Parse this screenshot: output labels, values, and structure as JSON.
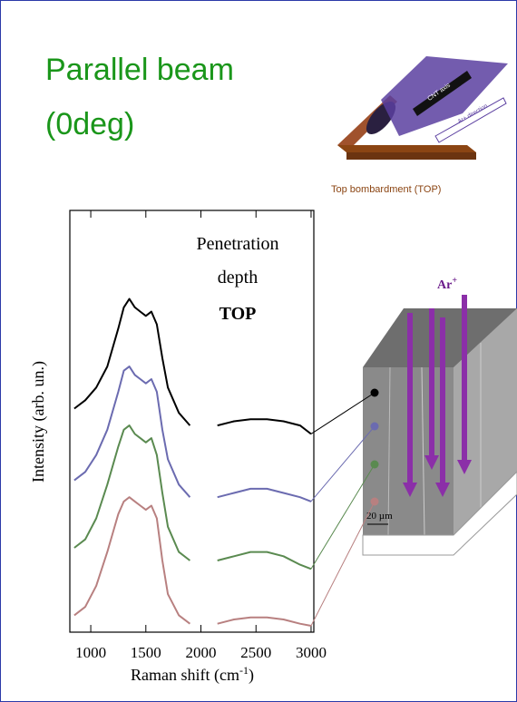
{
  "title": [
    "Parallel beam",
    "(0deg)"
  ],
  "illustration": {
    "cnt_label": "CNT axis",
    "ar_label": "Ar+ direction",
    "caption": "Top bombardment (TOP)"
  },
  "chart_data": {
    "type": "line",
    "annotation": [
      "Penetration",
      "depth",
      "TOP"
    ],
    "ylabel": "Intensity (arb. un.)",
    "xlabel": [
      "Raman shift (cm",
      "-1",
      ")"
    ],
    "x": [
      850,
      950,
      1050,
      1150,
      1250,
      1300,
      1350,
      1400,
      1450,
      1500,
      1550,
      1600,
      1650,
      1700,
      1800,
      1900,
      2000,
      2150,
      2300,
      2450,
      2600,
      2750,
      2900,
      3000
    ],
    "xlim": [
      810,
      3025
    ],
    "xticks": [
      1000,
      1500,
      2000,
      2500,
      3000
    ],
    "ylim": [
      0,
      100
    ],
    "series": [
      {
        "color": "#000000",
        "values": [
          53,
          55,
          58,
          63,
          72,
          77,
          79,
          77,
          76,
          75,
          76,
          73,
          65,
          58,
          52,
          49,
          null,
          49,
          50,
          50.5,
          50.5,
          50,
          49,
          47
        ]
      },
      {
        "color": "#6b6bb0",
        "values": [
          36,
          38,
          42,
          48,
          57,
          62,
          63,
          61,
          60,
          59,
          60,
          57,
          48,
          41,
          35,
          32,
          null,
          32,
          33,
          34,
          34,
          33,
          32,
          31
        ]
      },
      {
        "color": "#5a8a50",
        "values": [
          20,
          22,
          27,
          35,
          44,
          48,
          49,
          47,
          46,
          45,
          46,
          42,
          33,
          25,
          19,
          17,
          null,
          17,
          18,
          19,
          19,
          18,
          16,
          15
        ]
      },
      {
        "color": "#b88080",
        "values": [
          4,
          6,
          11,
          19,
          28,
          31,
          32,
          31,
          30,
          29,
          30,
          27,
          17,
          9,
          4,
          2,
          null,
          2,
          3,
          3.5,
          3.5,
          3,
          2,
          1.5
        ]
      }
    ]
  },
  "sample": {
    "ion": [
      "Ar",
      "+"
    ],
    "scale": "20 µm"
  }
}
